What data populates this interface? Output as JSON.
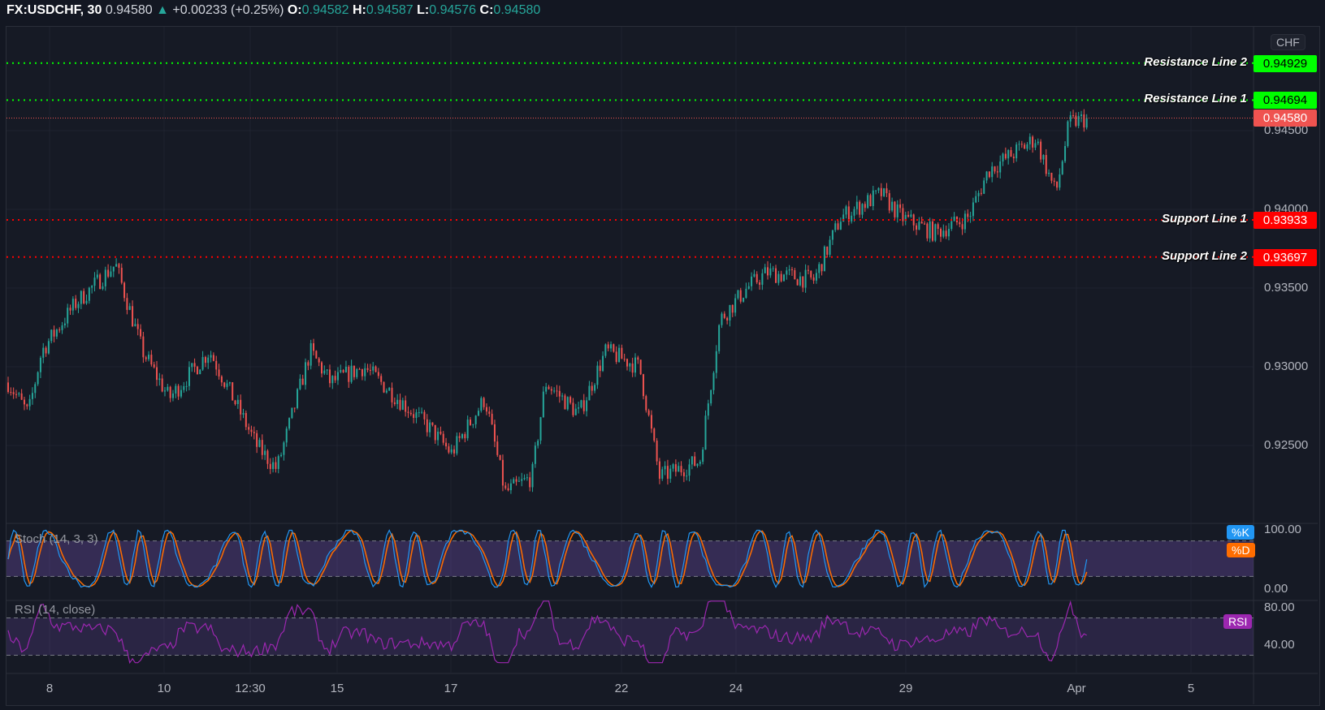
{
  "header": {
    "symbol": "FX:USDCHF, 30",
    "last": "0.94580",
    "arrow": "▲",
    "change": "+0.00233 (+0.25%)",
    "o_label": "O:",
    "o": "0.94582",
    "h_label": "H:",
    "h": "0.94587",
    "l_label": "L:",
    "l": "0.94576",
    "c_label": "C:",
    "c": "0.94580"
  },
  "currency": "CHF",
  "price_axis": [
    "0.94500",
    "0.94000",
    "0.93500",
    "0.93000",
    "0.92500"
  ],
  "lines": [
    {
      "label": "Resistance Line 2",
      "value": "0.94929",
      "color": "#00ff00"
    },
    {
      "label": "Resistance Line 1",
      "value": "0.94694",
      "color": "#00ff00"
    },
    {
      "label": "Support Line 1",
      "value": "0.93933",
      "color": "#ff0000"
    },
    {
      "label": "Support Line 2",
      "value": "0.93697",
      "color": "#ff0000"
    }
  ],
  "current_price": {
    "value": "0.94580",
    "color": "#ef5350"
  },
  "stoch": {
    "name": "Stoch (14, 3, 3)",
    "k_tag": "%K",
    "d_tag": "%D",
    "axis": [
      "100.00",
      "0.00"
    ],
    "k_color": "#2196f3",
    "d_color": "#ff6d00"
  },
  "rsi": {
    "name": "RSI (14, close)",
    "tag": "RSI",
    "axis": [
      "80.00",
      "40.00"
    ],
    "color": "#9c27b0"
  },
  "time_axis": [
    "8",
    "10",
    "12:30",
    "15",
    "17",
    "22",
    "24",
    "29",
    "Apr",
    "5"
  ],
  "chart_data": {
    "type": "candlestick",
    "up_color": "#26a69a",
    "down_color": "#ef5350",
    "close_path": [
      [
        0,
        0.929
      ],
      [
        3,
        0.927
      ],
      [
        5,
        0.931
      ],
      [
        10,
        0.934
      ],
      [
        16,
        0.9365
      ],
      [
        20,
        0.931
      ],
      [
        24,
        0.928
      ],
      [
        30,
        0.931
      ],
      [
        37,
        0.925
      ],
      [
        40,
        0.9235
      ],
      [
        45,
        0.931
      ],
      [
        48,
        0.929
      ],
      [
        53,
        0.93
      ],
      [
        58,
        0.928
      ],
      [
        63,
        0.926
      ],
      [
        66,
        0.9245
      ],
      [
        71,
        0.928
      ],
      [
        74,
        0.922
      ],
      [
        78,
        0.923
      ],
      [
        80,
        0.929
      ],
      [
        85,
        0.927
      ],
      [
        89,
        0.931
      ],
      [
        94,
        0.93
      ],
      [
        97,
        0.923
      ],
      [
        103,
        0.924
      ],
      [
        106,
        0.933
      ],
      [
        110,
        0.935
      ],
      [
        113,
        0.936
      ],
      [
        120,
        0.9355
      ],
      [
        124,
        0.9395
      ],
      [
        130,
        0.941
      ],
      [
        133,
        0.9395
      ],
      [
        138,
        0.9385
      ],
      [
        143,
        0.9395
      ],
      [
        146,
        0.9425
      ],
      [
        153,
        0.9445
      ],
      [
        156,
        0.941
      ],
      [
        158,
        0.9455
      ],
      [
        161,
        0.9458
      ]
    ]
  }
}
